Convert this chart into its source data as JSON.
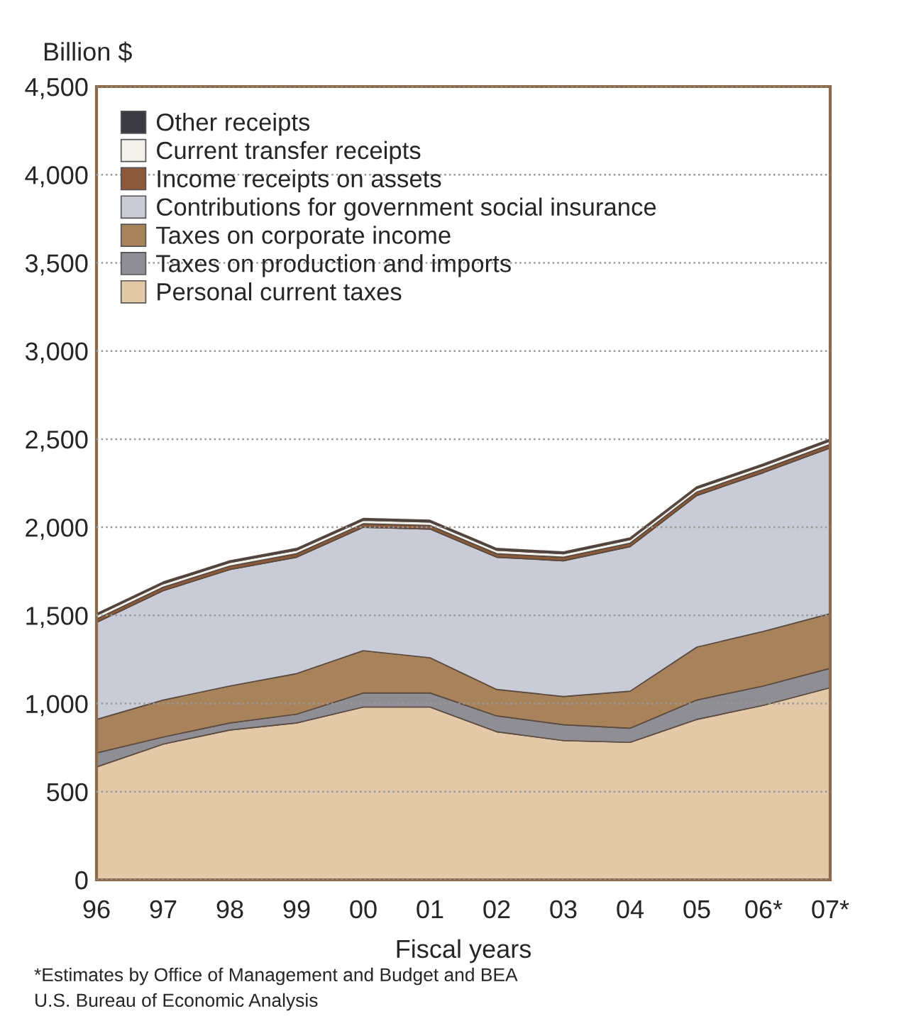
{
  "chart_data": {
    "type": "area",
    "stacked": true,
    "ylabel": "Billion $",
    "xlabel": "Fiscal years",
    "categories": [
      "96",
      "97",
      "98",
      "99",
      "00",
      "01",
      "02",
      "03",
      "04",
      "05",
      "06*",
      "07*"
    ],
    "series": [
      {
        "name": "Personal current taxes",
        "color": "#e3c9a8",
        "values": [
          640,
          770,
          850,
          890,
          980,
          980,
          840,
          790,
          780,
          910,
          990,
          1090
        ]
      },
      {
        "name": "Taxes on production and imports",
        "color": "#8e8e94",
        "values": [
          80,
          40,
          40,
          50,
          80,
          80,
          90,
          90,
          80,
          110,
          110,
          110
        ]
      },
      {
        "name": "Taxes on corporate income",
        "color": "#a8825a",
        "values": [
          190,
          210,
          210,
          230,
          240,
          200,
          150,
          160,
          210,
          300,
          310,
          310
        ]
      },
      {
        "name": "Contributions for government social insurance",
        "color": "#c9ccd6",
        "values": [
          550,
          620,
          660,
          660,
          700,
          730,
          750,
          770,
          820,
          860,
          900,
          940
        ]
      },
      {
        "name": "Income receipts on assets",
        "color": "#8a5a3a",
        "values": [
          20,
          20,
          20,
          20,
          20,
          20,
          20,
          20,
          20,
          20,
          20,
          20
        ]
      },
      {
        "name": "Current transfer receipts",
        "color": "#f3f1ec",
        "values": [
          20,
          20,
          20,
          20,
          20,
          20,
          20,
          20,
          20,
          20,
          20,
          20
        ]
      },
      {
        "name": "Other receipts",
        "color": "#3a3a40",
        "values": [
          10,
          10,
          10,
          10,
          10,
          10,
          10,
          10,
          10,
          10,
          10,
          10
        ]
      }
    ],
    "ylim": [
      0,
      4500
    ],
    "yticks": [
      {
        "value": 0,
        "label": "0"
      },
      {
        "value": 500,
        "label": "500"
      },
      {
        "value": 1000,
        "label": "1,000"
      },
      {
        "value": 1500,
        "label": "1,500"
      },
      {
        "value": 2000,
        "label": "2,000"
      },
      {
        "value": 2500,
        "label": "2,500"
      },
      {
        "value": 3000,
        "label": "3,000"
      },
      {
        "value": 3500,
        "label": "3,500"
      },
      {
        "value": 4000,
        "label": "4,000"
      },
      {
        "value": 4500,
        "label": "4,500"
      }
    ],
    "grid": "y",
    "legend": "top left",
    "annotations": [
      "*Estimates by Office of Management and Budget and BEA",
      "U.S. Bureau of Economic Analysis"
    ]
  }
}
